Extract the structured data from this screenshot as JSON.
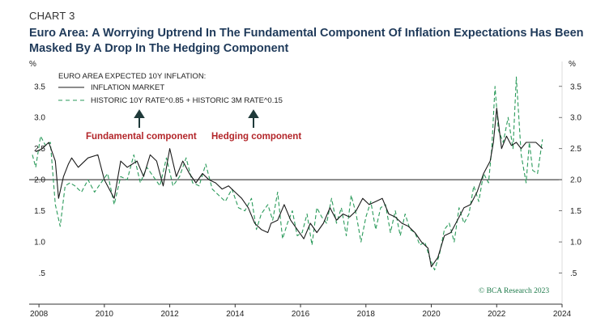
{
  "header": {
    "chart_number": "CHART 3",
    "title": "Euro Area: A Worrying Uptrend In The Fundamental Component Of Inflation Expectations Has Been Masked By A Drop In The Hedging Component"
  },
  "colors": {
    "inflation_market": "#1a1a1a",
    "historic_combo": "#2a9a5a",
    "annotation": "#b3262a",
    "arrow": "#1f3a3a",
    "title": "#1f3a5a",
    "credit": "#1d7a4a"
  },
  "annotations": {
    "fundamental": "Fundamental component",
    "hedging": "Hedging component"
  },
  "credit": "© BCA Research 2023",
  "chart_data": {
    "type": "line",
    "legend_title": "EURO AREA EXPECTED 10Y INFLATION:",
    "y_unit_left": "%",
    "y_unit_right": "%",
    "xlim": [
      2007.7,
      2024.0
    ],
    "ylim": [
      0.0,
      3.9
    ],
    "y_ticks": [
      0.5,
      1.0,
      1.5,
      2.0,
      2.5,
      3.0,
      3.5
    ],
    "y_tick_labels": [
      ".5",
      "1.0",
      "1.5",
      "2.0",
      "2.5",
      "3.0",
      "3.5"
    ],
    "x_ticks": [
      2008,
      2010,
      2012,
      2014,
      2016,
      2018,
      2020,
      2022,
      2024
    ],
    "x_tick_labels": [
      "2008",
      "2010",
      "2012",
      "2014",
      "2016",
      "2018",
      "2020",
      "2022",
      "2024"
    ],
    "reference_line": 2.0,
    "series": [
      {
        "name": "INFLATION MARKET",
        "style": "solid",
        "x": [
          2007.9,
          2008.1,
          2008.3,
          2008.5,
          2008.6,
          2008.75,
          2008.9,
          2009.0,
          2009.2,
          2009.5,
          2009.8,
          2010.0,
          2010.3,
          2010.5,
          2010.7,
          2011.0,
          2011.2,
          2011.4,
          2011.6,
          2011.8,
          2012.0,
          2012.2,
          2012.4,
          2012.6,
          2012.8,
          2013.0,
          2013.2,
          2013.4,
          2013.6,
          2013.8,
          2014.0,
          2014.2,
          2014.4,
          2014.6,
          2014.8,
          2015.0,
          2015.1,
          2015.3,
          2015.5,
          2015.7,
          2015.9,
          2016.1,
          2016.3,
          2016.5,
          2016.7,
          2016.9,
          2017.1,
          2017.3,
          2017.5,
          2017.7,
          2017.9,
          2018.1,
          2018.3,
          2018.5,
          2018.7,
          2018.9,
          2019.1,
          2019.3,
          2019.5,
          2019.7,
          2019.9,
          2020.0,
          2020.2,
          2020.4,
          2020.6,
          2020.8,
          2021.0,
          2021.2,
          2021.4,
          2021.6,
          2021.8,
          2021.9,
          2022.0,
          2022.15,
          2022.3,
          2022.45,
          2022.6,
          2022.75,
          2022.9,
          2023.0,
          2023.2,
          2023.4
        ],
        "values": [
          2.45,
          2.5,
          2.6,
          2.3,
          1.7,
          2.05,
          2.25,
          2.35,
          2.2,
          2.35,
          2.4,
          2.0,
          1.7,
          2.3,
          2.2,
          2.3,
          2.05,
          2.4,
          2.3,
          1.9,
          2.5,
          2.05,
          2.3,
          2.1,
          1.95,
          2.1,
          2.0,
          1.95,
          1.85,
          1.9,
          1.8,
          1.7,
          1.55,
          1.3,
          1.2,
          1.15,
          1.3,
          1.35,
          1.6,
          1.35,
          1.2,
          1.05,
          1.3,
          1.15,
          1.3,
          1.55,
          1.35,
          1.45,
          1.4,
          1.5,
          1.7,
          1.6,
          1.65,
          1.7,
          1.45,
          1.4,
          1.3,
          1.25,
          1.15,
          1.0,
          0.9,
          0.6,
          0.75,
          1.1,
          1.15,
          1.35,
          1.55,
          1.6,
          1.8,
          2.1,
          2.3,
          2.6,
          3.15,
          2.5,
          2.7,
          2.55,
          2.6,
          2.5,
          2.6,
          2.6,
          2.6,
          2.5
        ]
      },
      {
        "name": "HISTORIC 10Y RATE^0.85 + HISTORIC 3M RATE^0.15",
        "style": "dashed",
        "x": [
          2007.8,
          2007.9,
          2008.05,
          2008.2,
          2008.35,
          2008.5,
          2008.65,
          2008.8,
          2008.95,
          2009.1,
          2009.3,
          2009.5,
          2009.7,
          2009.9,
          2010.1,
          2010.3,
          2010.5,
          2010.7,
          2010.9,
          2011.1,
          2011.3,
          2011.5,
          2011.7,
          2011.9,
          2012.1,
          2012.3,
          2012.5,
          2012.7,
          2012.9,
          2013.1,
          2013.3,
          2013.5,
          2013.7,
          2013.9,
          2014.1,
          2014.3,
          2014.5,
          2014.65,
          2014.8,
          2015.0,
          2015.15,
          2015.3,
          2015.45,
          2015.6,
          2015.75,
          2015.9,
          2016.05,
          2016.2,
          2016.35,
          2016.5,
          2016.65,
          2016.8,
          2016.95,
          2017.1,
          2017.25,
          2017.4,
          2017.55,
          2017.7,
          2017.85,
          2018.0,
          2018.15,
          2018.3,
          2018.45,
          2018.6,
          2018.75,
          2018.9,
          2019.05,
          2019.2,
          2019.35,
          2019.5,
          2019.65,
          2019.8,
          2019.95,
          2020.1,
          2020.25,
          2020.4,
          2020.55,
          2020.7,
          2020.85,
          2021.0,
          2021.15,
          2021.3,
          2021.45,
          2021.6,
          2021.75,
          2021.85,
          2021.95,
          2022.05,
          2022.2,
          2022.35,
          2022.5,
          2022.6,
          2022.75,
          2022.9,
          2023.0,
          2023.1,
          2023.25,
          2023.4
        ],
        "values": [
          2.4,
          2.2,
          2.7,
          2.55,
          2.6,
          1.6,
          1.25,
          1.9,
          1.95,
          1.9,
          1.8,
          2.0,
          1.8,
          1.95,
          2.1,
          1.6,
          2.05,
          2.0,
          2.4,
          1.95,
          2.2,
          2.05,
          1.9,
          2.35,
          1.9,
          2.05,
          2.35,
          1.95,
          1.9,
          2.25,
          1.85,
          1.75,
          1.65,
          1.85,
          1.55,
          1.5,
          1.7,
          1.2,
          1.45,
          1.6,
          1.35,
          1.8,
          1.05,
          1.3,
          1.5,
          1.1,
          1.15,
          1.45,
          0.95,
          1.55,
          1.4,
          1.3,
          1.7,
          1.3,
          1.55,
          1.1,
          1.75,
          1.45,
          1.0,
          1.4,
          1.65,
          1.2,
          1.55,
          1.6,
          1.15,
          1.5,
          1.1,
          1.45,
          1.2,
          1.15,
          0.95,
          1.0,
          0.75,
          0.55,
          0.8,
          1.2,
          1.3,
          1.0,
          1.55,
          1.3,
          1.45,
          1.9,
          1.65,
          2.1,
          1.95,
          2.5,
          3.5,
          2.8,
          2.6,
          3.0,
          2.5,
          3.65,
          2.4,
          1.95,
          2.6,
          2.15,
          2.1,
          2.65
        ]
      }
    ]
  }
}
